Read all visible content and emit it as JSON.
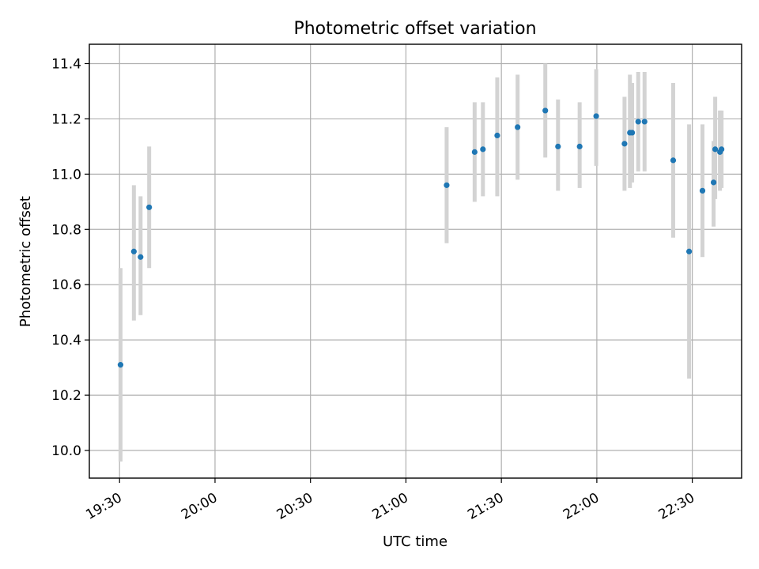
{
  "chart_data": {
    "type": "scatter",
    "title": "Photometric offset variation",
    "xlabel": "UTC time",
    "ylabel": "Photometric offset",
    "xlim_minutes": [
      1160.5,
      1365.5
    ],
    "ylim": [
      9.9,
      11.47
    ],
    "x_ticks": [
      {
        "label": "19:30",
        "minutes": 1170
      },
      {
        "label": "20:00",
        "minutes": 1200
      },
      {
        "label": "20:30",
        "minutes": 1230
      },
      {
        "label": "21:00",
        "minutes": 1260
      },
      {
        "label": "21:30",
        "minutes": 1290
      },
      {
        "label": "22:00",
        "minutes": 1320
      },
      {
        "label": "22:30",
        "minutes": 1350
      }
    ],
    "y_ticks": [
      {
        "label": "10.0",
        "value": 10.0
      },
      {
        "label": "10.2",
        "value": 10.2
      },
      {
        "label": "10.4",
        "value": 10.4
      },
      {
        "label": "10.6",
        "value": 10.6
      },
      {
        "label": "10.8",
        "value": 10.8
      },
      {
        "label": "11.0",
        "value": 11.0
      },
      {
        "label": "11.2",
        "value": 11.2
      },
      {
        "label": "11.4",
        "value": 11.4
      }
    ],
    "grid": true,
    "series": [
      {
        "name": "offset",
        "marker_color": "#1f77b4",
        "errorbar_color": "#d3d3d3",
        "points": [
          {
            "x": 1170.3,
            "y": 10.31,
            "ylow": 9.96,
            "yhigh": 10.66
          },
          {
            "x": 1174.5,
            "y": 10.72,
            "ylow": 10.47,
            "yhigh": 10.96
          },
          {
            "x": 1176.6,
            "y": 10.7,
            "ylow": 10.49,
            "yhigh": 10.92
          },
          {
            "x": 1179.3,
            "y": 10.88,
            "ylow": 10.66,
            "yhigh": 11.1
          },
          {
            "x": 1272.8,
            "y": 10.96,
            "ylow": 10.75,
            "yhigh": 11.17
          },
          {
            "x": 1281.6,
            "y": 11.08,
            "ylow": 10.9,
            "yhigh": 11.26
          },
          {
            "x": 1284.2,
            "y": 11.09,
            "ylow": 10.92,
            "yhigh": 11.26
          },
          {
            "x": 1288.7,
            "y": 11.14,
            "ylow": 10.92,
            "yhigh": 11.35
          },
          {
            "x": 1295.1,
            "y": 11.17,
            "ylow": 10.98,
            "yhigh": 11.36
          },
          {
            "x": 1303.8,
            "y": 11.23,
            "ylow": 11.06,
            "yhigh": 11.4
          },
          {
            "x": 1307.8,
            "y": 11.1,
            "ylow": 10.94,
            "yhigh": 11.27
          },
          {
            "x": 1314.6,
            "y": 11.1,
            "ylow": 10.95,
            "yhigh": 11.26
          },
          {
            "x": 1319.8,
            "y": 11.21,
            "ylow": 11.03,
            "yhigh": 11.38
          },
          {
            "x": 1328.7,
            "y": 11.11,
            "ylow": 10.94,
            "yhigh": 11.28
          },
          {
            "x": 1330.4,
            "y": 11.15,
            "ylow": 10.95,
            "yhigh": 11.36
          },
          {
            "x": 1331.1,
            "y": 11.15,
            "ylow": 10.97,
            "yhigh": 11.33
          },
          {
            "x": 1333.0,
            "y": 11.19,
            "ylow": 11.01,
            "yhigh": 11.37
          },
          {
            "x": 1335.0,
            "y": 11.19,
            "ylow": 11.01,
            "yhigh": 11.37
          },
          {
            "x": 1344.0,
            "y": 11.05,
            "ylow": 10.77,
            "yhigh": 11.33
          },
          {
            "x": 1349.0,
            "y": 10.72,
            "ylow": 10.26,
            "yhigh": 11.18
          },
          {
            "x": 1353.2,
            "y": 10.94,
            "ylow": 10.7,
            "yhigh": 11.18
          },
          {
            "x": 1356.7,
            "y": 10.97,
            "ylow": 10.81,
            "yhigh": 11.12
          },
          {
            "x": 1357.2,
            "y": 11.09,
            "ylow": 10.91,
            "yhigh": 11.28
          },
          {
            "x": 1358.7,
            "y": 11.08,
            "ylow": 10.94,
            "yhigh": 11.23
          },
          {
            "x": 1359.2,
            "y": 11.09,
            "ylow": 10.95,
            "yhigh": 11.23
          }
        ]
      }
    ]
  }
}
